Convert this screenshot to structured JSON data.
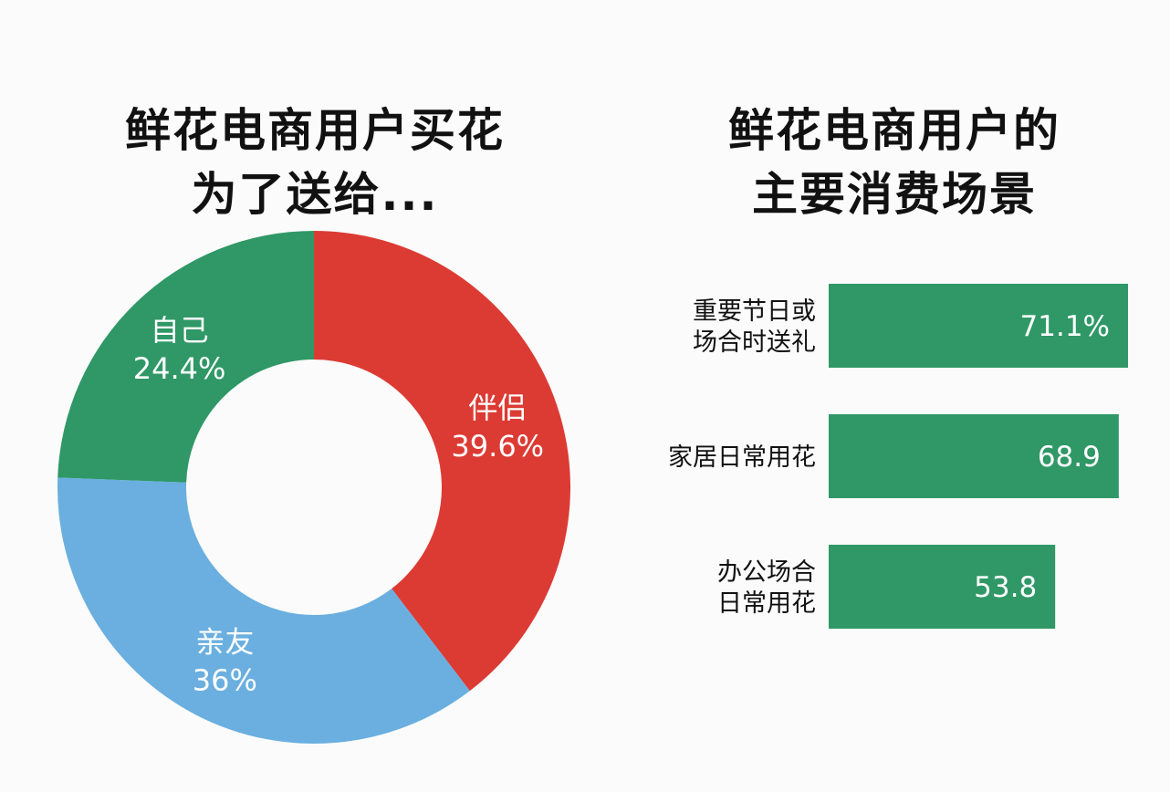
{
  "colors": {
    "partner": "#dc3b34",
    "friends": "#6aafdf",
    "self": "#2f9866",
    "bar": "#2f9866",
    "text_dark": "#111111",
    "text_light": "#ffffff"
  },
  "chart_data": [
    {
      "type": "pie",
      "style": "donut",
      "title": [
        "鲜花电商用户买花",
        "为了送给..."
      ],
      "slices": [
        {
          "label": "伴侣",
          "value": 39.6,
          "value_label": "39.6%",
          "color": "#dc3b34"
        },
        {
          "label": "亲友",
          "value": 36,
          "value_label": "36%",
          "color": "#6aafdf"
        },
        {
          "label": "自己",
          "value": 24.4,
          "value_label": "24.4%",
          "color": "#2f9866"
        }
      ]
    },
    {
      "type": "bar",
      "orientation": "horizontal",
      "title": [
        "鲜花电商用户的",
        "主要消费场景"
      ],
      "categories": [
        [
          "重要节日或",
          "场合时送礼"
        ],
        [
          "家居日常用花"
        ],
        [
          "办公场合",
          "日常用花"
        ]
      ],
      "values": [
        71.1,
        68.9,
        53.8
      ],
      "value_labels": [
        "71.1%",
        "68.9",
        "53.8"
      ],
      "color": "#2f9866",
      "xlim": [
        0,
        71.1
      ],
      "grid": false,
      "legend": false
    }
  ]
}
